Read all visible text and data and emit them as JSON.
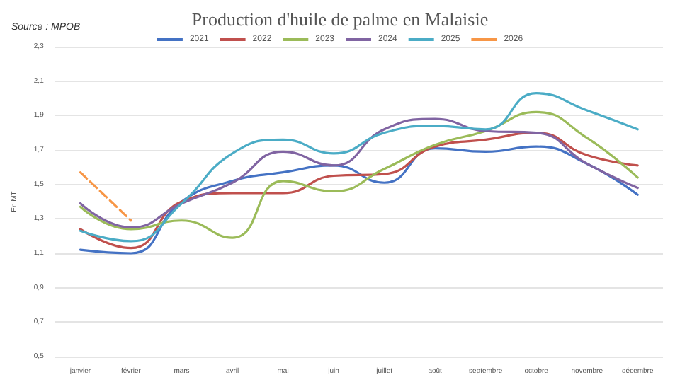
{
  "chart_data": {
    "type": "line",
    "title": "Production d'huile de palme en Malaisie",
    "ylabel": "En MT",
    "annotations": [
      "Source : MPOB"
    ],
    "categories": [
      "janvier",
      "février",
      "mars",
      "avril",
      "mai",
      "juin",
      "juillet",
      "août",
      "septembre",
      "octobre",
      "novembre",
      "décembre"
    ],
    "series": [
      {
        "name": "2021",
        "color": "#4472c4",
        "values": [
          1.12,
          1.1,
          1.4,
          1.52,
          1.57,
          1.61,
          1.51,
          1.71,
          1.69,
          1.72,
          1.62,
          1.44
        ]
      },
      {
        "name": "2022",
        "color": "#c0504d",
        "values": [
          1.24,
          1.13,
          1.4,
          1.45,
          1.45,
          1.55,
          1.56,
          1.72,
          1.76,
          1.8,
          1.67,
          1.61
        ]
      },
      {
        "name": "2023",
        "color": "#9bbb59",
        "values": [
          1.37,
          1.24,
          1.29,
          1.19,
          1.52,
          1.46,
          1.59,
          1.73,
          1.81,
          1.92,
          1.77,
          1.54
        ]
      },
      {
        "name": "2024",
        "color": "#8064a2",
        "values": [
          1.39,
          1.25,
          1.39,
          1.51,
          1.69,
          1.61,
          1.82,
          1.88,
          1.81,
          1.8,
          1.62,
          1.48
        ]
      },
      {
        "name": "2025",
        "color": "#4bacc6",
        "values": [
          1.23,
          1.17,
          1.39,
          1.68,
          1.76,
          1.68,
          1.8,
          1.84,
          1.82,
          2.03,
          1.93,
          1.82
        ]
      },
      {
        "name": "2026",
        "color": "#f79646",
        "line_style": "dashed",
        "values": [
          1.57,
          1.29,
          null,
          null,
          null,
          null,
          null,
          null,
          null,
          null,
          null,
          null
        ]
      }
    ],
    "ylim": [
      0.5,
      2.3
    ],
    "yticks": [
      {
        "value": 0.5,
        "label": "0,5"
      },
      {
        "value": 0.7,
        "label": "0,7"
      },
      {
        "value": 0.9,
        "label": "0,9"
      },
      {
        "value": 1.1,
        "label": "1,1"
      },
      {
        "value": 1.3,
        "label": "1,3"
      },
      {
        "value": 1.5,
        "label": "1,5"
      },
      {
        "value": 1.7,
        "label": "1,7"
      },
      {
        "value": 1.9,
        "label": "1,9"
      },
      {
        "value": 2.1,
        "label": "2,1"
      },
      {
        "value": 2.3,
        "label": "2,3"
      }
    ],
    "grid": "y",
    "legend": "top",
    "marker": "none",
    "line_style": "solid"
  }
}
